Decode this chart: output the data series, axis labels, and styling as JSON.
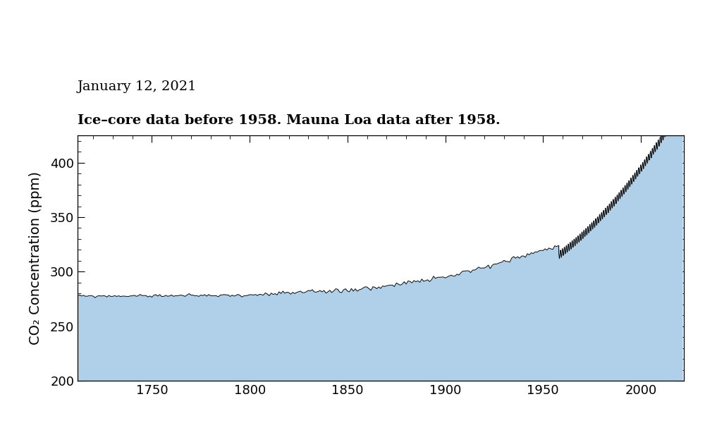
{
  "title_date": "January 12, 2021",
  "title_subtitle": "Ice–core data before 1958. Mauna Loa data after 1958.",
  "ylabel": "CO₂ Concentration (ppm)",
  "xlim": [
    1712,
    2022
  ],
  "ylim": [
    200,
    425
  ],
  "yticks": [
    200,
    250,
    300,
    350,
    400
  ],
  "xticks": [
    1750,
    1800,
    1850,
    1900,
    1950,
    2000
  ],
  "fill_color": "#b0cfe8",
  "line_color": "#000000",
  "background_color": "#ffffff",
  "title_date_fontsize": 14,
  "subtitle_fontsize": 14,
  "ylabel_fontsize": 14,
  "tick_fontsize": 13
}
